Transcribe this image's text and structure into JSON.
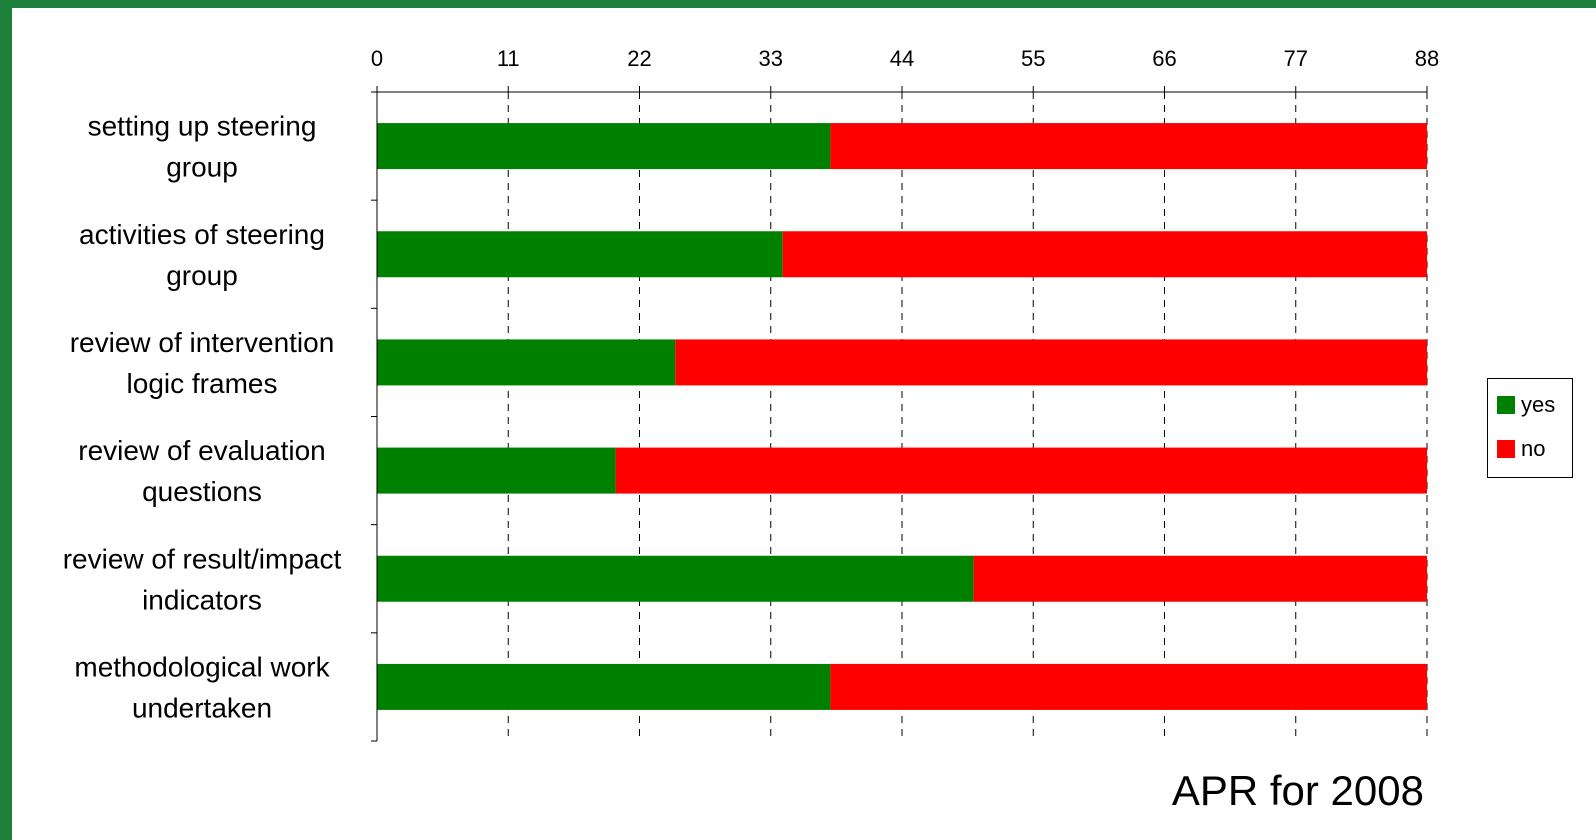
{
  "chart_data": {
    "type": "bar",
    "orientation": "horizontal",
    "stacked": true,
    "categories": [
      [
        "setting up steering",
        "group"
      ],
      [
        "activities of steering",
        "group"
      ],
      [
        "review of intervention",
        "logic frames"
      ],
      [
        "review of evaluation",
        "questions"
      ],
      [
        "review of result/impact",
        "indicators"
      ],
      [
        "methodological work",
        "undertaken"
      ]
    ],
    "series": [
      {
        "name": "yes",
        "color": "#008000",
        "values": [
          38,
          34,
          25,
          20,
          50,
          38
        ]
      },
      {
        "name": "no",
        "color": "#ff0000",
        "values": [
          50,
          54,
          63,
          68,
          38,
          50
        ]
      }
    ],
    "xticks": [
      "0",
      "11",
      "22",
      "33",
      "44",
      "55",
      "66",
      "77",
      "88"
    ],
    "xlim": [
      0,
      88
    ],
    "x_axis_position": "top",
    "grid": "vertical-dashed",
    "legend": "right",
    "annotation": "APR for 2008"
  }
}
